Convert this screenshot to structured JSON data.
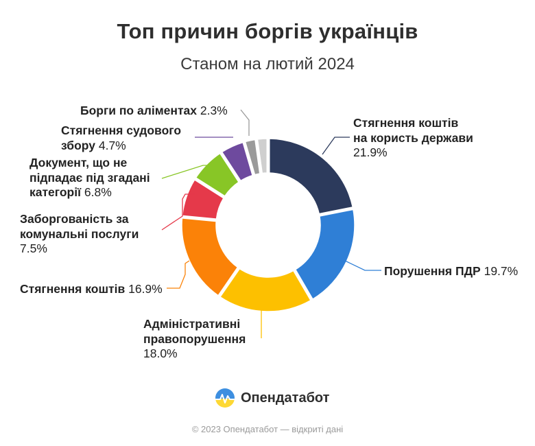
{
  "header": {
    "title": "Топ причин боргів українців",
    "subtitle": "Станом на лютий 2024"
  },
  "chart_data": {
    "type": "pie",
    "title": "Топ причин боргів українців",
    "subtitle": "Станом на лютий 2024",
    "unit": "%",
    "slices": [
      {
        "label": "Стягнення коштів на користь держави",
        "value": 21.9,
        "value_text": "21.9%",
        "color": "#2c3a5c"
      },
      {
        "label": "Порушення ПДР",
        "value": 19.7,
        "value_text": "19.7%",
        "color": "#2f7fd6"
      },
      {
        "label": "Адміністративні правопорушення",
        "value": 18.0,
        "value_text": "18.0%",
        "color": "#fdc000"
      },
      {
        "label": "Стягнення коштів",
        "value": 16.9,
        "value_text": "16.9%",
        "color": "#fb8208"
      },
      {
        "label": "Заборгованість за комунальні послуги",
        "value": 7.5,
        "value_text": "7.5%",
        "color": "#e5394a"
      },
      {
        "label": "Документ, що не підпадає під згадані категорії",
        "value": 6.8,
        "value_text": "6.8%",
        "color": "#88c626"
      },
      {
        "label": "Стягнення судового збору",
        "value": 4.7,
        "value_text": "4.7%",
        "color": "#6e4a9e"
      },
      {
        "label": "Борги по аліментах",
        "value": 2.3,
        "value_text": "2.3%",
        "color": "#9a9a9a"
      },
      {
        "label": "",
        "value": 2.2,
        "value_text": "",
        "color": "#cfcfcf"
      }
    ]
  },
  "labels": {
    "l0": {
      "name1": "Стягнення коштів",
      "name2": "на користь держави",
      "value": "21.9%"
    },
    "l1": {
      "name": "Порушення ПДР",
      "value": "19.7%"
    },
    "l2": {
      "name1": "Адміністративні",
      "name2": "правопорушення",
      "value": "18.0%"
    },
    "l3": {
      "name": "Стягнення коштів",
      "value": "16.9%"
    },
    "l4": {
      "name1": "Заборгованість за",
      "name2": "комунальні послуги",
      "value": "7.5%"
    },
    "l5": {
      "name1": "Документ, що не",
      "name2": "підпадає під згадані",
      "name3": "категорії",
      "value": "6.8%"
    },
    "l6": {
      "name1": "Стягнення судового",
      "name2": "збору",
      "value": "4.7%"
    },
    "l7": {
      "name": "Борги по аліментах",
      "value": "2.3%"
    }
  },
  "brand": {
    "name": "Опендатабот",
    "icon": "opendatabot-logo-icon",
    "colors": {
      "blue": "#3d8fe0",
      "yellow": "#fdd835"
    }
  },
  "footer": {
    "text": "© 2023 Опендатабот — відкриті дані"
  }
}
